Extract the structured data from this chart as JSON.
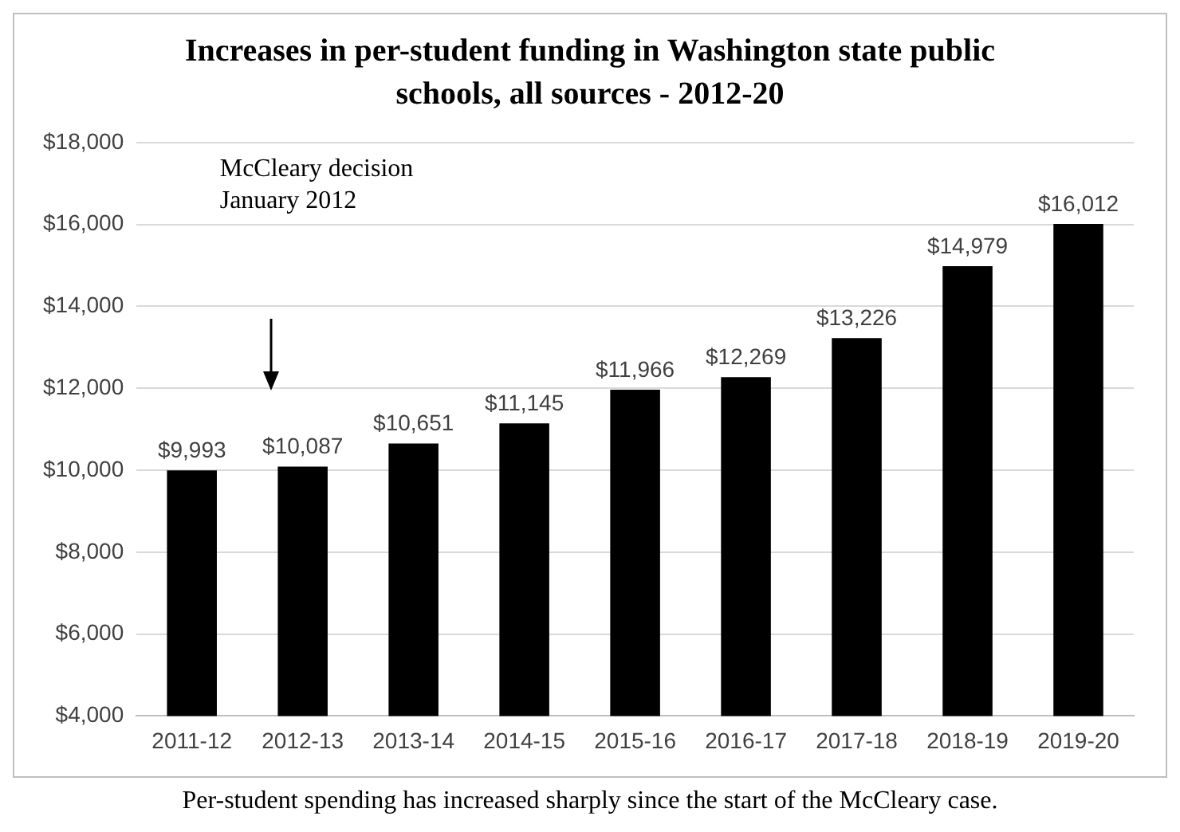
{
  "chart_data": {
    "type": "bar",
    "title": "Increases in per-student funding in Washington state public schools, all sources - 2012-20",
    "categories": [
      "2011-12",
      "2012-13",
      "2013-14",
      "2014-15",
      "2015-16",
      "2016-17",
      "2017-18",
      "2018-19",
      "2019-20"
    ],
    "values": [
      9993,
      10087,
      10651,
      11145,
      11966,
      12269,
      13226,
      14979,
      16012
    ],
    "value_labels": [
      "$9,993",
      "$10,087",
      "$10,651",
      "$11,145",
      "$11,966",
      "$12,269",
      "$13,226",
      "$14,979",
      "$16,012"
    ],
    "color": "#000000",
    "ylim": [
      4000,
      18000
    ],
    "yticks": [
      {
        "value": 4000,
        "label": "$4,000"
      },
      {
        "value": 6000,
        "label": "$6,000"
      },
      {
        "value": 8000,
        "label": "$8,000"
      },
      {
        "value": 10000,
        "label": "$10,000"
      },
      {
        "value": 12000,
        "label": "$12,000"
      },
      {
        "value": 14000,
        "label": "$14,000"
      },
      {
        "value": 16000,
        "label": "$16,000"
      },
      {
        "value": 18000,
        "label": "$18,000"
      }
    ],
    "grid": "y",
    "legend": false,
    "annotations": [
      "McCleary decision January 2012",
      "Per-student spending has increased sharply since the start of the McCleary case."
    ]
  }
}
